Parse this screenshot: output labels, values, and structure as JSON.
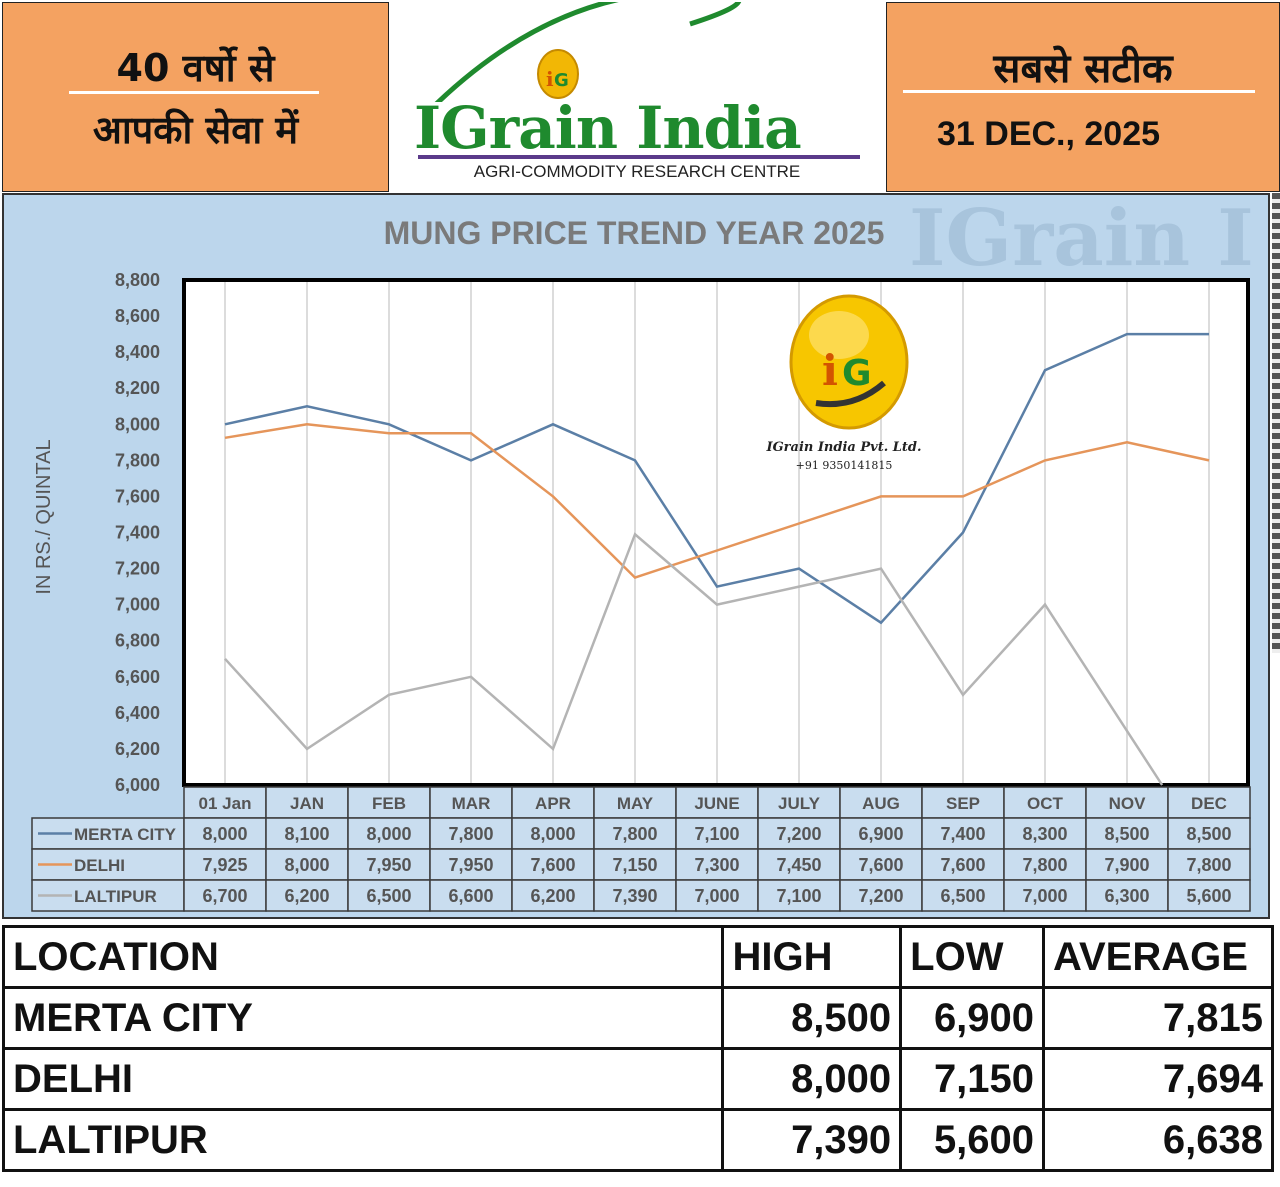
{
  "header": {
    "left_line1": "40 वर्षो से",
    "left_line2": "आपकी सेवा में",
    "brand_name": "IGrain India",
    "brand_tagline": "AGRI-COMMODITY RESEARCH CENTRE",
    "right_line1": "सबसे सटीक",
    "date": "31 DEC., 2025",
    "accent_color": "#f4a261",
    "brand_color": "#1f8a2e"
  },
  "watermark": {
    "company": "IGrain India Pvt. Ltd.",
    "phone": "+91 9350141815"
  },
  "chart_data": {
    "type": "line",
    "title": "MUNG  PRICE TREND YEAR 2025",
    "ylabel": "IN RS./ QUINTAL",
    "ylim": [
      6000,
      8800
    ],
    "yticks": [
      "8,800",
      "8,600",
      "8,400",
      "8,200",
      "8,000",
      "7,800",
      "7,600",
      "7,400",
      "7,200",
      "7,000",
      "6,800",
      "6,600",
      "6,400",
      "6,200",
      "6,000"
    ],
    "categories": [
      "01 Jan",
      "JAN",
      "FEB",
      "MAR",
      "APR",
      "MAY",
      "JUNE",
      "JULY",
      "AUG",
      "SEP",
      "OCT",
      "NOV",
      "DEC"
    ],
    "series": [
      {
        "name": "MERTA CITY",
        "color": "#5b7fa6",
        "values": [
          8000,
          8100,
          8000,
          7800,
          8000,
          7800,
          7100,
          7200,
          6900,
          7400,
          8300,
          8500,
          8500
        ],
        "labels": [
          "8,000",
          "8,100",
          "8,000",
          "7,800",
          "8,000",
          "7,800",
          "7,100",
          "7,200",
          "6,900",
          "7,400",
          "8,300",
          "8,500",
          "8,500"
        ]
      },
      {
        "name": "DELHI",
        "color": "#e5955a",
        "values": [
          7925,
          8000,
          7950,
          7950,
          7600,
          7150,
          7300,
          7450,
          7600,
          7600,
          7800,
          7900,
          7800
        ],
        "labels": [
          "7,925",
          "8,000",
          "7,950",
          "7,950",
          "7,600",
          "7,150",
          "7,300",
          "7,450",
          "7,600",
          "7,600",
          "7,800",
          "7,900",
          "7,800"
        ]
      },
      {
        "name": "LALTIPUR",
        "color": "#b4b4b4",
        "values": [
          6700,
          6200,
          6500,
          6600,
          6200,
          7390,
          7000,
          7100,
          7200,
          6500,
          7000,
          6300,
          5600
        ],
        "labels": [
          "6,700",
          "6,200",
          "6,500",
          "6,600",
          "6,200",
          "7,390",
          "7,000",
          "7,100",
          "7,200",
          "6,500",
          "7,000",
          "6,300",
          "5,600"
        ]
      }
    ],
    "grid": true
  },
  "summary": {
    "headers": [
      "LOCATION",
      "HIGH",
      "LOW",
      "AVERAGE"
    ],
    "rows": [
      [
        "MERTA CITY",
        "8,500",
        "6,900",
        "7,815"
      ],
      [
        "DELHI",
        "8,000",
        "7,150",
        "7,694"
      ],
      [
        "LALTIPUR",
        "7,390",
        "5,600",
        "6,638"
      ]
    ]
  }
}
